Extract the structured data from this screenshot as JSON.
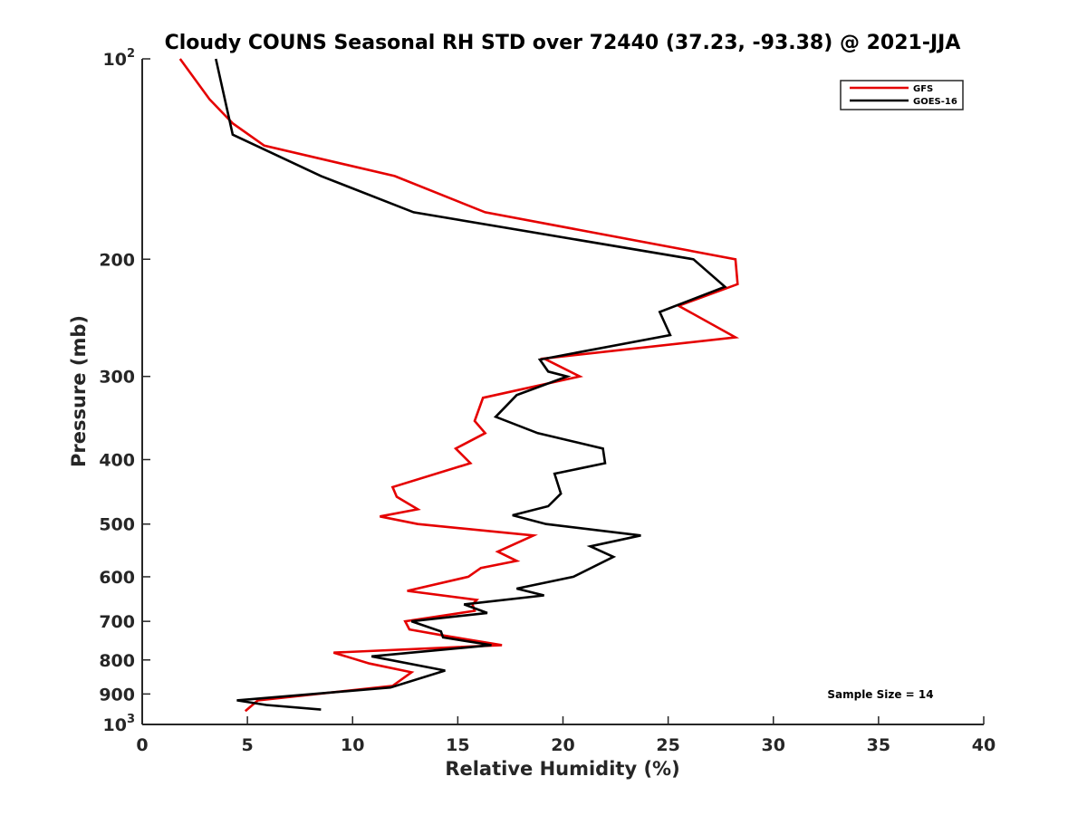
{
  "chart_data": {
    "type": "line",
    "title": "Cloudy COUNS Seasonal RH STD over 72440 (37.23, -93.38) @ 2021-JJA",
    "xlabel": "Relative Humidity (%)",
    "ylabel": "Pressure (mb)",
    "xlim": [
      0,
      40
    ],
    "ylim": [
      100,
      1000
    ],
    "y_scale": "log",
    "y_reversed": true,
    "x_ticks": [
      "0",
      "5",
      "10",
      "15",
      "20",
      "25",
      "30",
      "35",
      "40"
    ],
    "x_tick_values": [
      0,
      5,
      10,
      15,
      20,
      25,
      30,
      35,
      40
    ],
    "y_ticks": [
      {
        "value": 100,
        "base": "10",
        "exp": "2"
      },
      {
        "value": 200,
        "label": "200"
      },
      {
        "value": 300,
        "label": "300"
      },
      {
        "value": 400,
        "label": "400"
      },
      {
        "value": 500,
        "label": "500"
      },
      {
        "value": 600,
        "label": "600"
      },
      {
        "value": 700,
        "label": "700"
      },
      {
        "value": 800,
        "label": "800"
      },
      {
        "value": 900,
        "label": "900"
      },
      {
        "value": 1000,
        "base": "10",
        "exp": "3"
      }
    ],
    "legend_position": "top-right",
    "annotation": "Sample Size = 14",
    "series": [
      {
        "name": "GFS",
        "color": "#e50000",
        "points": [
          [
            1.8,
            100
          ],
          [
            3.2,
            115
          ],
          [
            4.3,
            125
          ],
          [
            5.8,
            135
          ],
          [
            12.0,
            150
          ],
          [
            16.3,
            170
          ],
          [
            28.2,
            200
          ],
          [
            28.3,
            218
          ],
          [
            25.5,
            235
          ],
          [
            28.2,
            262
          ],
          [
            19.1,
            282
          ],
          [
            20.8,
            300
          ],
          [
            16.2,
            323
          ],
          [
            15.8,
            350
          ],
          [
            16.3,
            365
          ],
          [
            14.9,
            385
          ],
          [
            15.6,
            405
          ],
          [
            11.9,
            440
          ],
          [
            12.1,
            455
          ],
          [
            13.1,
            475
          ],
          [
            11.3,
            487
          ],
          [
            13.1,
            500
          ],
          [
            18.6,
            520
          ],
          [
            16.9,
            550
          ],
          [
            17.8,
            568
          ],
          [
            16.1,
            582
          ],
          [
            15.5,
            600
          ],
          [
            12.6,
            630
          ],
          [
            15.9,
            650
          ],
          [
            15.7,
            660
          ],
          [
            15.8,
            675
          ],
          [
            12.5,
            700
          ],
          [
            12.7,
            720
          ],
          [
            14.3,
            735
          ],
          [
            17.1,
            760
          ],
          [
            9.1,
            780
          ],
          [
            10.8,
            810
          ],
          [
            12.8,
            835
          ],
          [
            11.9,
            875
          ],
          [
            5.5,
            920
          ],
          [
            4.9,
            955
          ]
        ]
      },
      {
        "name": "GOES-16",
        "color": "#000000",
        "points": [
          [
            3.5,
            100
          ],
          [
            4.3,
            130
          ],
          [
            8.5,
            150
          ],
          [
            12.9,
            170
          ],
          [
            26.2,
            200
          ],
          [
            27.7,
            220
          ],
          [
            24.6,
            240
          ],
          [
            25.1,
            260
          ],
          [
            18.9,
            283
          ],
          [
            19.3,
            295
          ],
          [
            20.2,
            300
          ],
          [
            17.8,
            320
          ],
          [
            16.8,
            345
          ],
          [
            18.8,
            365
          ],
          [
            21.9,
            385
          ],
          [
            22.0,
            405
          ],
          [
            19.6,
            420
          ],
          [
            19.9,
            450
          ],
          [
            19.3,
            470
          ],
          [
            17.6,
            485
          ],
          [
            19.2,
            500
          ],
          [
            23.7,
            520
          ],
          [
            21.3,
            540
          ],
          [
            22.4,
            560
          ],
          [
            20.5,
            600
          ],
          [
            17.8,
            625
          ],
          [
            19.1,
            640
          ],
          [
            15.3,
            660
          ],
          [
            16.4,
            680
          ],
          [
            12.8,
            700
          ],
          [
            14.2,
            725
          ],
          [
            14.3,
            740
          ],
          [
            16.6,
            760
          ],
          [
            10.9,
            790
          ],
          [
            14.4,
            830
          ],
          [
            11.8,
            880
          ],
          [
            4.5,
            920
          ],
          [
            5.9,
            935
          ],
          [
            8.5,
            950
          ]
        ]
      }
    ]
  }
}
